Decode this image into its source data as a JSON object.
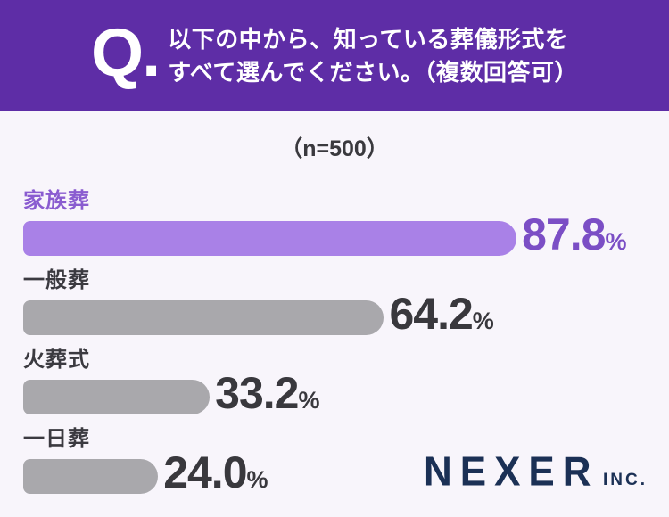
{
  "header": {
    "q_label": "Q.",
    "title_line1": "以下の中から、知っている葬儀形式を",
    "title_line2": "すべて選んでください。（複数回答可）"
  },
  "sample_size": "（n=500）",
  "chart_data": {
    "type": "bar",
    "orientation": "horizontal",
    "title": "以下の中から、知っている葬儀形式をすべて選んでください。（複数回答可）",
    "sample_label": "（n=500）",
    "sample_n": 500,
    "categories": [
      "家族葬",
      "一般葬",
      "火葬式",
      "一日葬"
    ],
    "values": [
      87.8,
      64.2,
      33.2,
      24.0
    ],
    "value_labels": [
      "87.8",
      "64.2",
      "33.2",
      "24.0"
    ],
    "unit": "%",
    "xlim": [
      0,
      100
    ],
    "grid": false,
    "highlight_index": 0,
    "bar_colors": [
      "#A981E7",
      "#A9A8AC",
      "#A9A8AC",
      "#A9A8AC"
    ],
    "category_colors": [
      "#8A5CD0",
      "#3B3A40",
      "#3B3A40",
      "#3B3A40"
    ],
    "value_colors": [
      "#7B4EC5",
      "#39383D",
      "#39383D",
      "#39383D"
    ]
  },
  "colors": {
    "header_background": "#5E2DA6",
    "header_text": "#FFFFFF",
    "page_background": "#F8F5FB",
    "accent_purple": "#A981E7",
    "neutral_gray": "#A9A8AC",
    "logo_navy": "#1B3055"
  },
  "footer": {
    "brand": "NEXER",
    "suffix": "INC."
  }
}
